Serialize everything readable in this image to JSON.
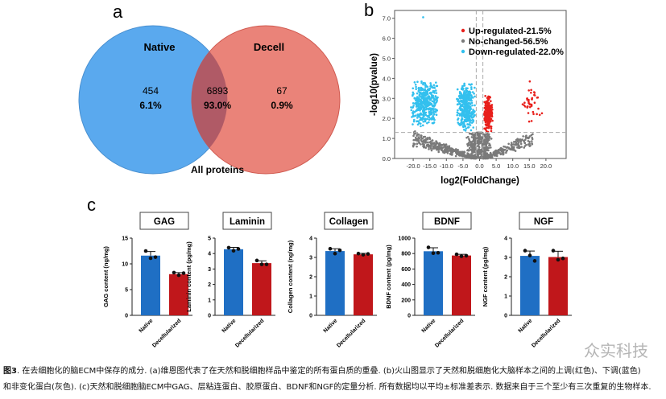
{
  "panel_labels": {
    "a": "a",
    "b": "b",
    "c": "c"
  },
  "chart_data": [
    {
      "type": "venn",
      "panel": "a",
      "sets": [
        {
          "name": "Native",
          "color": "#5aa9ee"
        },
        {
          "name": "Decell",
          "color": "#e8766a"
        }
      ],
      "regions": [
        {
          "count": "454",
          "percent": "6.1%"
        },
        {
          "count": "6893",
          "percent": "93.0%"
        },
        {
          "count": "67",
          "percent": "0.9%"
        }
      ],
      "title": "All proteins"
    },
    {
      "type": "scatter",
      "panel": "b",
      "xlabel": "log2(FoldChange)",
      "ylabel": "-log10(pvalue)",
      "xlim": [
        -25,
        25
      ],
      "ylim": [
        0,
        7.3
      ],
      "xticks": [
        "-20.0",
        "-15.0",
        "-10.0",
        "-5.0",
        "0.0",
        "5.0",
        "10.0",
        "15.0",
        "20.0"
      ],
      "xtick_values": [
        -20,
        -15,
        -10,
        -5,
        0,
        5,
        10,
        15,
        20
      ],
      "yticks": [
        "0.0",
        "1.0",
        "2.0",
        "3.0",
        "4.0",
        "5.0",
        "6.0",
        "7.0"
      ],
      "ytick_values": [
        0,
        1,
        2,
        3,
        4,
        5,
        6,
        7
      ],
      "thresholds": {
        "x": [
          -1,
          1
        ],
        "y": 1.3
      },
      "legend": [
        {
          "label": "Up-regulated-21.5%",
          "color": "#e8201c"
        },
        {
          "label": "No-changed-56.5%",
          "color": "#7a7a7a"
        },
        {
          "label": "Down-regulated-22.0%",
          "color": "#33c0ee"
        }
      ],
      "legend_position": "top-right",
      "clusters": [
        {
          "cat": "down",
          "x": [
            -21,
            -12
          ],
          "y": [
            1.6,
            3.85
          ],
          "n": 420
        },
        {
          "cat": "down",
          "x": [
            -7,
            -1.2
          ],
          "y": [
            1.3,
            3.85
          ],
          "n": 380
        },
        {
          "cat": "down",
          "x": [
            -17,
            -17
          ],
          "y": [
            7.05,
            7.05
          ],
          "n": 1
        },
        {
          "cat": "up",
          "x": [
            1.2,
            4
          ],
          "y": [
            1.3,
            3.2
          ],
          "n": 260
        },
        {
          "cat": "up",
          "x": [
            12,
            19
          ],
          "y": [
            1.6,
            3.9
          ],
          "n": 40
        },
        {
          "cat": "none",
          "x": [
            -20,
            -1
          ],
          "y": [
            0,
            1.2
          ],
          "n": 300,
          "shape": "vleft"
        },
        {
          "cat": "none",
          "x": [
            1,
            16
          ],
          "y": [
            0,
            1.2
          ],
          "n": 200,
          "shape": "vright"
        },
        {
          "cat": "none",
          "x": [
            -4,
            4
          ],
          "y": [
            0,
            2.3
          ],
          "n": 450,
          "shape": "center"
        }
      ]
    },
    {
      "type": "bar",
      "panel": "c",
      "title": "GAG",
      "ylabel": "GAG content (ng/mg)",
      "ylim": [
        0,
        15
      ],
      "yticks": [
        0,
        5,
        10,
        15
      ],
      "categories": [
        "Native",
        "Decellularized"
      ],
      "values": [
        11.6,
        8.0
      ],
      "errors": [
        0.8,
        0.3
      ],
      "points": [
        [
          12.5,
          11.1,
          11.3
        ],
        [
          8.3,
          7.8,
          8.2
        ]
      ]
    },
    {
      "type": "bar",
      "panel": "c",
      "title": "Laminin",
      "ylabel": "Laminin content (pg/mg)",
      "ylim": [
        0,
        5
      ],
      "yticks": [
        0,
        1,
        2,
        3,
        4,
        5
      ],
      "categories": [
        "Native",
        "Decellularized"
      ],
      "values": [
        4.28,
        3.38
      ],
      "errors": [
        0.12,
        0.15
      ],
      "points": [
        [
          4.38,
          4.18,
          4.3
        ],
        [
          3.55,
          3.3,
          3.3
        ]
      ]
    },
    {
      "type": "bar",
      "panel": "c",
      "title": "Collagen",
      "ylabel": "Collagen content (ng/mg)",
      "ylim": [
        0,
        4
      ],
      "yticks": [
        0,
        1,
        2,
        3,
        4
      ],
      "categories": [
        "Native",
        "Decellularized"
      ],
      "values": [
        3.33,
        3.16
      ],
      "errors": [
        0.12,
        0.05
      ],
      "points": [
        [
          3.45,
          3.2,
          3.37
        ],
        [
          3.2,
          3.14,
          3.18
        ]
      ]
    },
    {
      "type": "bar",
      "panel": "c",
      "title": "BDNF",
      "ylabel": "BDNF content (pg/mg)",
      "ylim": [
        0,
        1000
      ],
      "yticks": [
        0,
        200,
        400,
        600,
        800,
        1000
      ],
      "categories": [
        "Native",
        "Decellularized"
      ],
      "values": [
        830,
        775
      ],
      "errors": [
        45,
        15
      ],
      "points": [
        [
          880,
          805,
          810
        ],
        [
          790,
          765,
          772
        ]
      ]
    },
    {
      "type": "bar",
      "panel": "c",
      "title": "NGF",
      "ylabel": "NGF content (pg/mg)",
      "ylim": [
        0,
        4
      ],
      "yticks": [
        0,
        1,
        2,
        3,
        4
      ],
      "categories": [
        "Native",
        "Decellularized"
      ],
      "values": [
        3.08,
        3.02
      ],
      "errors": [
        0.25,
        0.3
      ],
      "points": [
        [
          3.35,
          3.1,
          2.82
        ],
        [
          3.35,
          2.88,
          2.95
        ]
      ]
    }
  ],
  "colors": {
    "native": "#1f6fc4",
    "decell": "#c0171b"
  },
  "caption": {
    "fig": "图3",
    "line1": ". 在去细胞化的脑ECM中保存的成分. (a)维恩图代表了在天然和脱细胞样品中鉴定的所有蛋白质的重叠. (b)火山图显示了天然和脱细胞化大脑样本之间的上调(红色)、下调(蓝色)",
    "line2": "和非变化蛋白(灰色). (c)天然和脱细胞脑ECM中GAG、层粘连蛋白、胶原蛋白、BDNF和NGF的定量分析. 所有数据均以平均±标准差表示. 数据来自于三个至少有三次重复的生物样本."
  },
  "watermark": "众实科技"
}
